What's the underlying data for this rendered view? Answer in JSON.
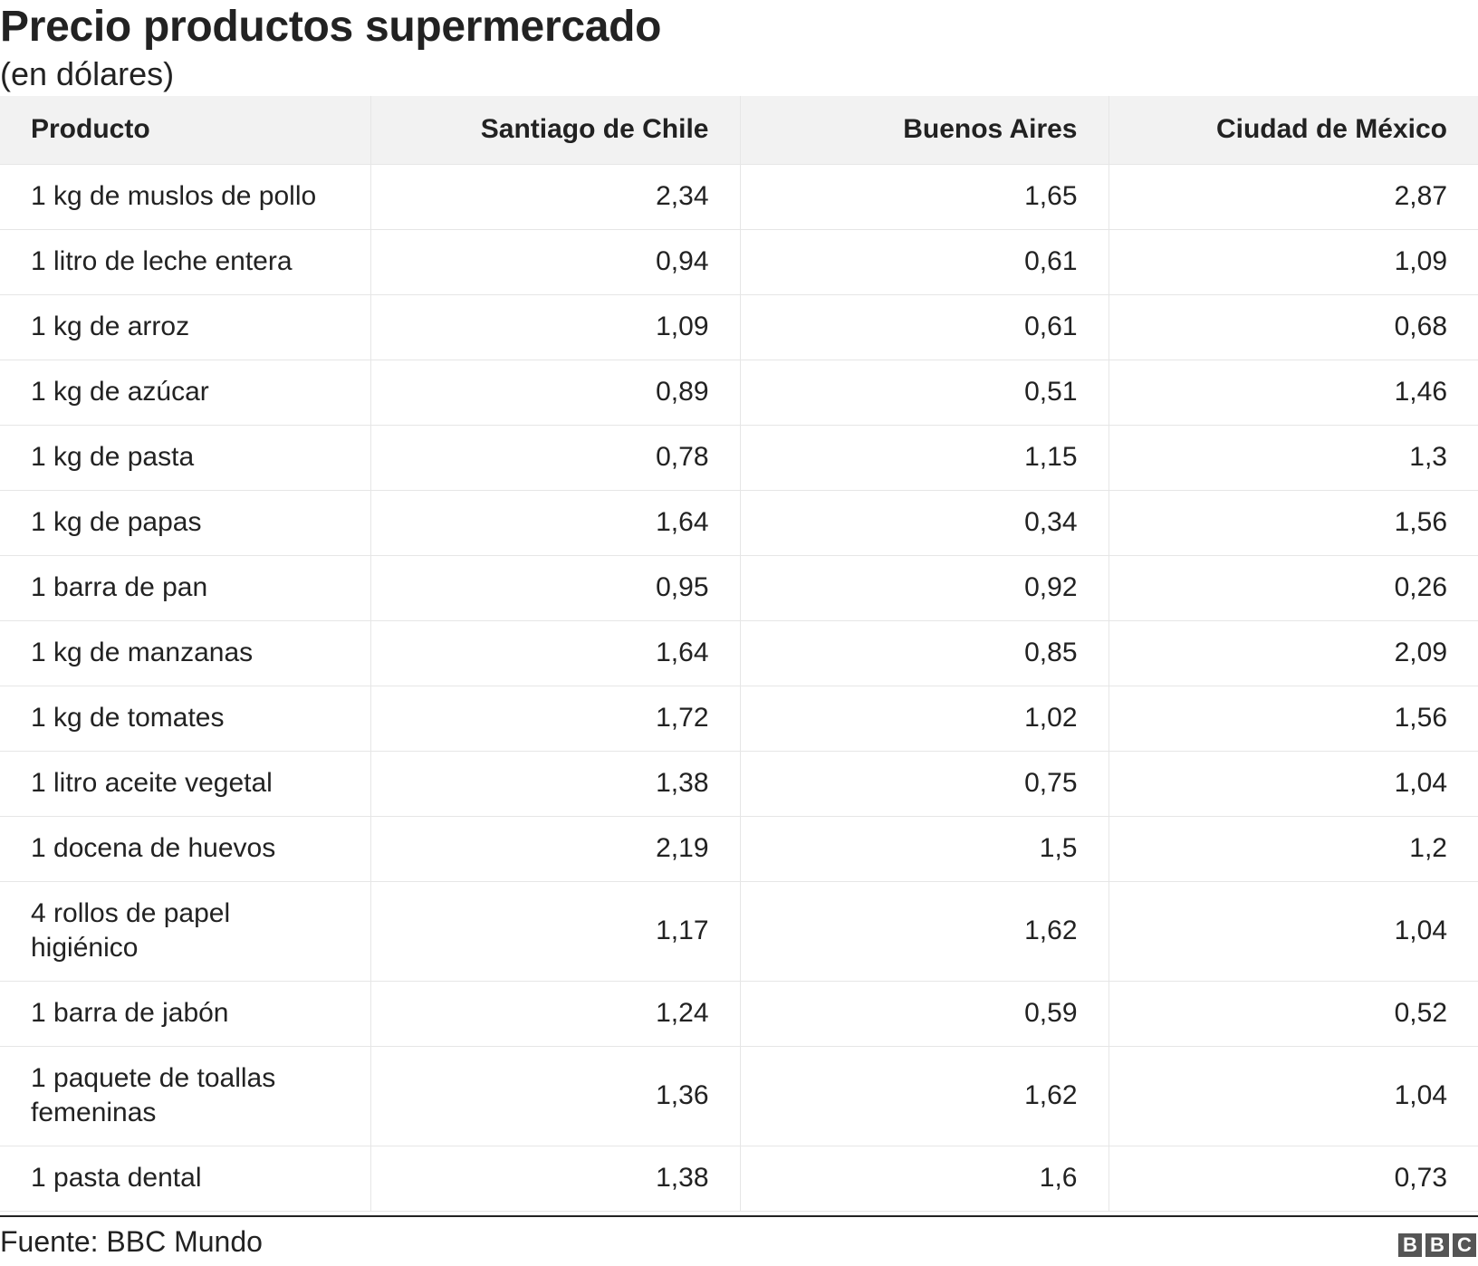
{
  "header": {
    "title": "Precio productos supermercado",
    "subtitle": "(en dólares)"
  },
  "chart_data": {
    "type": "table",
    "columns": [
      "Producto",
      "Santiago de Chile",
      "Buenos Aires",
      "Ciudad de México"
    ],
    "rows": [
      [
        "1 kg de muslos de pollo",
        "2,34",
        "1,65",
        "2,87"
      ],
      [
        "1 litro de leche entera",
        "0,94",
        "0,61",
        "1,09"
      ],
      [
        "1 kg de arroz",
        "1,09",
        "0,61",
        "0,68"
      ],
      [
        "1 kg de azúcar",
        "0,89",
        "0,51",
        "1,46"
      ],
      [
        "1 kg de pasta",
        "0,78",
        "1,15",
        "1,3"
      ],
      [
        "1 kg de papas",
        "1,64",
        "0,34",
        "1,56"
      ],
      [
        "1 barra de pan",
        "0,95",
        "0,92",
        "0,26"
      ],
      [
        "1 kg de manzanas",
        "1,64",
        "0,85",
        "2,09"
      ],
      [
        "1 kg de tomates",
        "1,72",
        "1,02",
        "1,56"
      ],
      [
        "1 litro aceite vegetal",
        "1,38",
        "0,75",
        "1,04"
      ],
      [
        "1 docena de huevos",
        "2,19",
        "1,5",
        "1,2"
      ],
      [
        "4 rollos de papel higiénico",
        "1,17",
        "1,62",
        "1,04"
      ],
      [
        "1 barra de jabón",
        "1,24",
        "0,59",
        "0,52"
      ],
      [
        "1 paquete de toallas femeninas",
        "1,36",
        "1,62",
        "1,04"
      ],
      [
        "1 pasta dental",
        "1,38",
        "1,6",
        "0,73"
      ]
    ],
    "header_background": "#f2f2f2",
    "grid_color": "#e6e6e6"
  },
  "footer": {
    "source": "Fuente: BBC Mundo",
    "logo_letters": [
      "B",
      "B",
      "C"
    ]
  }
}
